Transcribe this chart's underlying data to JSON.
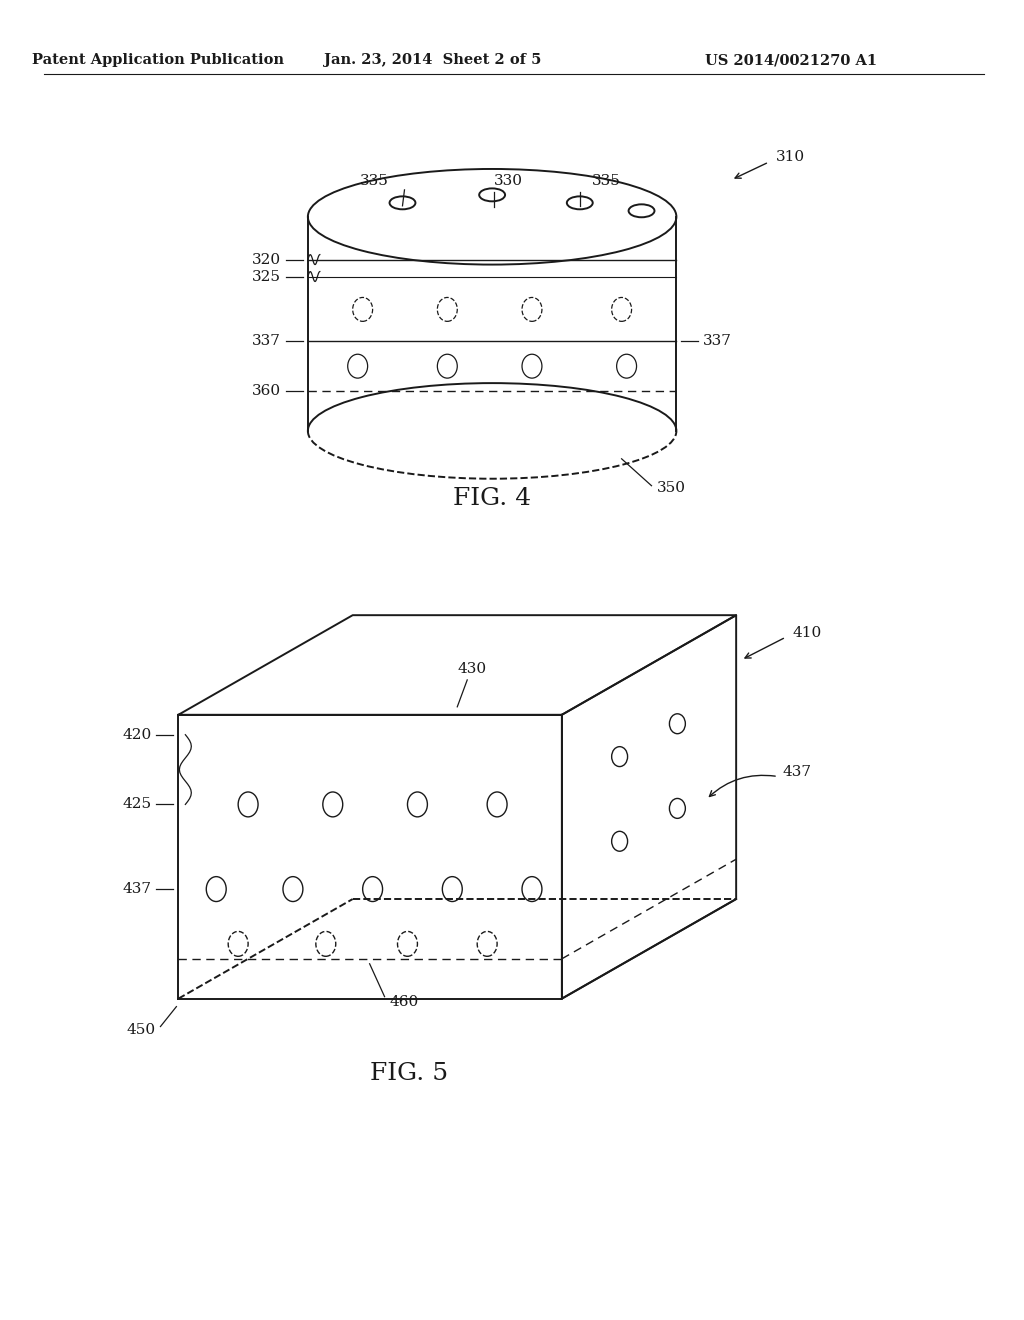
{
  "bg_color": "#ffffff",
  "header_left": "Patent Application Publication",
  "header_center": "Jan. 23, 2014  Sheet 2 of 5",
  "header_right": "US 2014/0021270 A1",
  "fig4_label": "FIG. 4",
  "fig5_label": "FIG. 5",
  "line_color": "#1a1a1a",
  "text_color": "#1a1a1a",
  "header_fontsize": 10.5,
  "ref_fontsize": 11,
  "fig_label_fontsize": 18
}
